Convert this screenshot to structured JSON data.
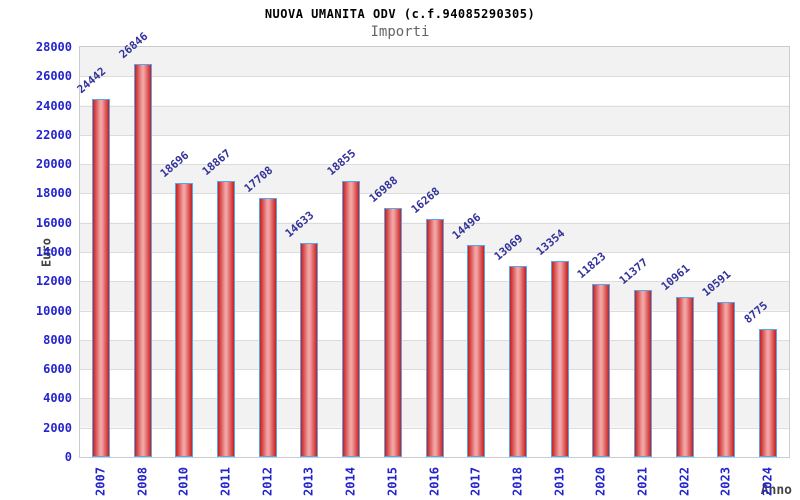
{
  "chart_data": {
    "type": "bar",
    "title": "NUOVA UMANITA ODV (c.f.94085290305)",
    "subtitle": "Importi",
    "xlabel": "Anno",
    "ylabel": "Euro",
    "categories": [
      "2007",
      "2008",
      "2010",
      "2011",
      "2012",
      "2013",
      "2014",
      "2015",
      "2016",
      "2017",
      "2018",
      "2019",
      "2020",
      "2021",
      "2022",
      "2023",
      "2024"
    ],
    "values": [
      24442,
      26846,
      18696,
      18867,
      17708,
      14633,
      18855,
      16988,
      16268,
      14496,
      13069,
      13354,
      11823,
      11377,
      10961,
      10591,
      8775
    ],
    "ylim": [
      0,
      28000
    ],
    "ytick_step": 2000,
    "ytick_labels": [
      "0",
      "2000",
      "4000",
      "6000",
      "8000",
      "10000",
      "12000",
      "14000",
      "16000",
      "18000",
      "20000",
      "22000",
      "24000",
      "26000",
      "28000"
    ],
    "grid": true,
    "legend": false,
    "alternating_row_bands": true,
    "colors": {
      "bar_edge": "#c81f1f",
      "bar_mid": "#f2a3a3",
      "bar_border": "#58a6ea",
      "axis_tick_label": "#2424cc",
      "value_label": "#333399",
      "gridline": "#dcdcdc",
      "band": "#f2f2f2",
      "title": "#000000",
      "subtitle": "#666666",
      "axis_title": "#444444",
      "plot_border": "#cccccc"
    }
  }
}
